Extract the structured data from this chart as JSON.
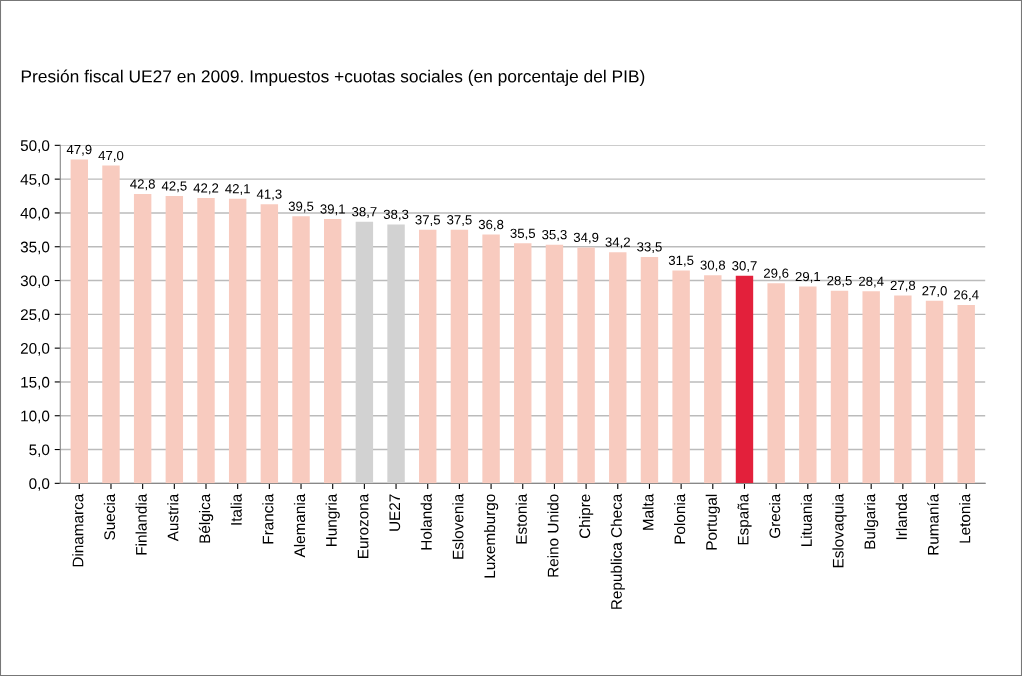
{
  "chart_data": {
    "type": "bar",
    "title": "Presión fiscal UE27 en 2009. Impuestos +cuotas sociales (en porcentaje del PIB)",
    "categories": [
      "Dinamarca",
      "Suecia",
      "Finlandia",
      "Austria",
      "Bélgica",
      "Italia",
      "Francia",
      "Alemania",
      "Hungria",
      "Eurozona",
      "UE27",
      "Holanda",
      "Eslovenia",
      "Luxemburgo",
      "Estonia",
      "Reino Unido",
      "Chipre",
      "Republica Checa",
      "Malta",
      "Polonia",
      "Portugal",
      "España",
      "Grecia",
      "Lituania",
      "Eslovaquia",
      "Bulgaria",
      "Irlanda",
      "Rumanía",
      "Letonia"
    ],
    "values": [
      47.9,
      47.0,
      42.8,
      42.5,
      42.2,
      42.1,
      41.3,
      39.5,
      39.1,
      38.7,
      38.3,
      37.5,
      37.5,
      36.8,
      35.5,
      35.3,
      34.9,
      34.2,
      33.5,
      31.5,
      30.8,
      30.7,
      29.6,
      29.1,
      28.5,
      28.4,
      27.8,
      27.0,
      26.4
    ],
    "value_labels": [
      "47,9",
      "47,0",
      "42,8",
      "42,5",
      "42,2",
      "42,1",
      "41,3",
      "39,5",
      "39,1",
      "38,7",
      "38,3",
      "37,5",
      "37,5",
      "36,8",
      "35,5",
      "35,3",
      "34,9",
      "34,2",
      "33,5",
      "31,5",
      "30,8",
      "30,7",
      "29,6",
      "29,1",
      "28,5",
      "28,4",
      "27,8",
      "27,0",
      "26,4"
    ],
    "colors": [
      "#f8cbbf",
      "#f8cbbf",
      "#f8cbbf",
      "#f8cbbf",
      "#f8cbbf",
      "#f8cbbf",
      "#f8cbbf",
      "#f8cbbf",
      "#f8cbbf",
      "#d2d2d2",
      "#d2d2d2",
      "#f8cbbf",
      "#f8cbbf",
      "#f8cbbf",
      "#f8cbbf",
      "#f8cbbf",
      "#f8cbbf",
      "#f8cbbf",
      "#f8cbbf",
      "#f8cbbf",
      "#f8cbbf",
      "#e3203b",
      "#f8cbbf",
      "#f8cbbf",
      "#f8cbbf",
      "#f8cbbf",
      "#f8cbbf",
      "#f8cbbf",
      "#f8cbbf"
    ],
    "ylim": [
      0,
      50
    ],
    "yticks": [
      {
        "value": 0,
        "label": "0,0"
      },
      {
        "value": 5,
        "label": "5,0"
      },
      {
        "value": 10,
        "label": "10,0"
      },
      {
        "value": 15,
        "label": "15,0"
      },
      {
        "value": 20,
        "label": "20,0"
      },
      {
        "value": 25,
        "label": "25,0"
      },
      {
        "value": 30,
        "label": "30,0"
      },
      {
        "value": 35,
        "label": "35,0"
      },
      {
        "value": 40,
        "label": "40,0"
      },
      {
        "value": 45,
        "label": "45,0"
      },
      {
        "value": 50,
        "label": "50,0"
      }
    ],
    "grid": "y"
  }
}
